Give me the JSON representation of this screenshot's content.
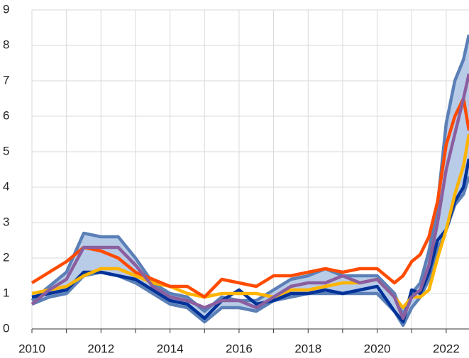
{
  "chart_data": {
    "type": "line",
    "x": [
      2010,
      2010.5,
      2011,
      2011.5,
      2012,
      2012.5,
      2013,
      2013.5,
      2014,
      2014.5,
      2015,
      2015.5,
      2016,
      2016.5,
      2017,
      2017.5,
      2018,
      2018.5,
      2019,
      2019.5,
      2020,
      2020.5,
      2020.75,
      2021,
      2021.25,
      2021.5,
      2021.75,
      2022,
      2022.25,
      2022.5,
      2022.66
    ],
    "band": {
      "color": "#b8cce8"
    },
    "series": [
      {
        "color": "#5b80b7",
        "values": [
          0.8,
          1.2,
          1.6,
          2.7,
          2.6,
          2.6,
          2.0,
          1.3,
          1.0,
          0.9,
          0.5,
          0.9,
          0.8,
          0.8,
          1.1,
          1.4,
          1.5,
          1.7,
          1.5,
          1.5,
          1.5,
          1.0,
          0.4,
          1.0,
          1.3,
          2.2,
          3.5,
          5.8,
          7.0,
          7.6,
          8.3
        ]
      },
      {
        "color": "#5b80b7",
        "values": [
          0.7,
          0.9,
          1.0,
          1.5,
          1.6,
          1.5,
          1.3,
          1.0,
          0.7,
          0.6,
          0.2,
          0.6,
          0.6,
          0.5,
          0.8,
          0.9,
          1.0,
          1.0,
          1.0,
          1.0,
          1.0,
          0.5,
          0.1,
          0.6,
          0.9,
          1.4,
          2.2,
          2.8,
          3.5,
          3.8,
          4.3
        ]
      },
      {
        "color": "#003299",
        "values": [
          0.9,
          1.0,
          1.1,
          1.6,
          1.6,
          1.5,
          1.4,
          1.1,
          0.8,
          0.7,
          0.3,
          0.8,
          1.1,
          0.7,
          0.8,
          1.0,
          1.0,
          1.1,
          1.0,
          1.1,
          1.2,
          0.5,
          0.2,
          1.1,
          1.0,
          1.6,
          2.5,
          2.8,
          3.6,
          4.0,
          4.8
        ]
      },
      {
        "color": "#ffb400",
        "values": [
          1.0,
          1.1,
          1.2,
          1.5,
          1.7,
          1.7,
          1.5,
          1.3,
          1.2,
          1.0,
          0.9,
          1.0,
          1.0,
          1.0,
          0.9,
          1.1,
          1.1,
          1.2,
          1.3,
          1.3,
          1.4,
          0.9,
          0.6,
          0.9,
          0.9,
          1.1,
          2.0,
          2.8,
          3.8,
          4.6,
          5.5
        ]
      },
      {
        "color": "#ff4b00",
        "values": [
          1.3,
          1.6,
          1.9,
          2.3,
          2.2,
          2.0,
          1.6,
          1.4,
          1.2,
          1.2,
          0.9,
          1.4,
          1.3,
          1.2,
          1.5,
          1.5,
          1.6,
          1.7,
          1.6,
          1.7,
          1.7,
          1.3,
          1.5,
          1.9,
          2.1,
          2.6,
          3.6,
          5.2,
          6.0,
          6.5,
          5.6
        ]
      },
      {
        "color": "#8b5f9f",
        "values": [
          0.7,
          1.1,
          1.4,
          2.3,
          2.3,
          2.3,
          1.8,
          1.2,
          0.9,
          0.8,
          0.6,
          0.8,
          0.8,
          0.6,
          0.9,
          1.2,
          1.3,
          1.3,
          1.5,
          1.3,
          1.4,
          0.9,
          0.3,
          0.9,
          1.1,
          1.8,
          3.0,
          4.5,
          5.5,
          6.5,
          7.2
        ]
      }
    ],
    "xlim": [
      2010,
      2022.66
    ],
    "xticks": [
      2010,
      2012,
      2014,
      2016,
      2018,
      2020,
      2022
    ],
    "x_minor_ticks": [
      2011,
      2013,
      2015,
      2017,
      2019,
      2021
    ],
    "ylim": [
      0,
      9
    ],
    "yticks": [
      0,
      1,
      2,
      3,
      4,
      5,
      6,
      7,
      8,
      9
    ],
    "grid": true
  }
}
